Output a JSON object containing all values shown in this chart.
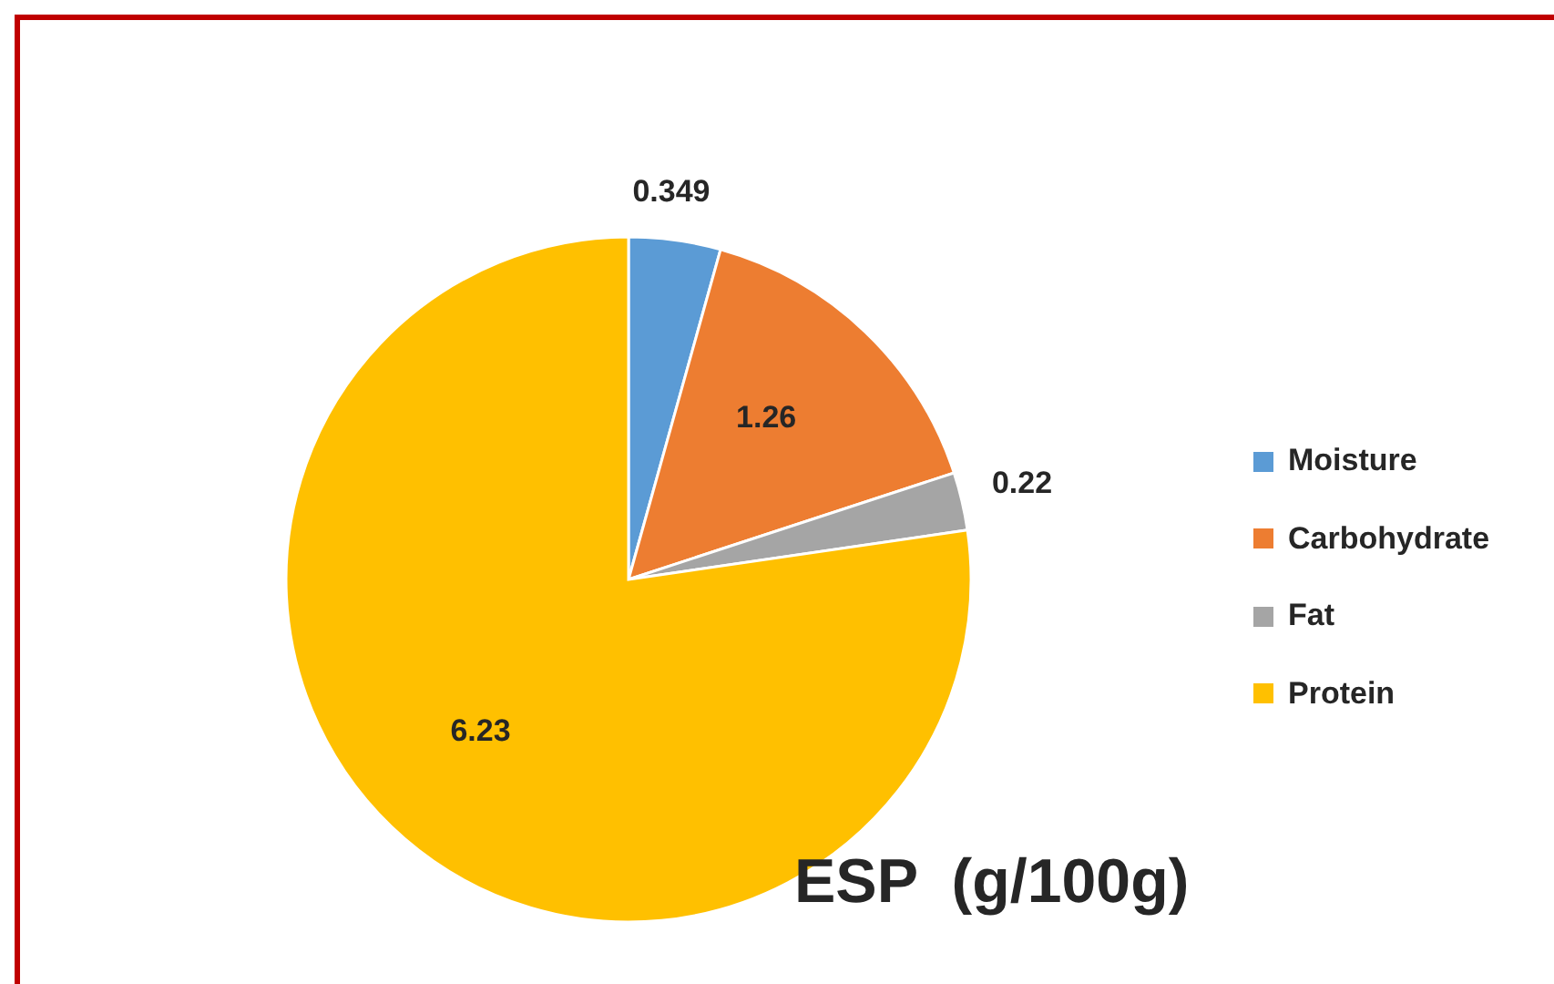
{
  "chart_data": {
    "type": "pie",
    "title": "ESP  (g/100g)",
    "categories": [
      "Moisture",
      "Carbohydrate",
      "Fat",
      "Protein"
    ],
    "values": [
      0.349,
      1.26,
      0.22,
      6.23
    ],
    "colors": [
      "#5b9bd5",
      "#ed7d31",
      "#a5a5a5",
      "#ffc000"
    ],
    "data_labels": true,
    "legend": "right"
  }
}
